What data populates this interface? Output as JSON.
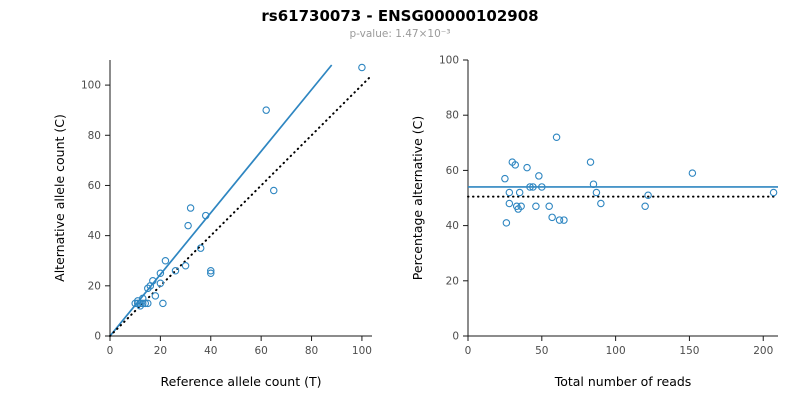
{
  "title": "rs61730073 - ENSG00000102908",
  "subtitle": "p-value: 1.47×10⁻³",
  "colors": {
    "accent_blue": "#2e86c1",
    "identity_black": "#000000",
    "axis": "#1a1a1a",
    "tick_text": "#4d4d4d"
  },
  "chart_data": [
    {
      "type": "scatter",
      "title": "",
      "xlabel": "Reference allele count (T)",
      "ylabel": "Alternative allele count (C)",
      "xlim": [
        0,
        104
      ],
      "ylim": [
        0,
        110
      ],
      "xticks": [
        0,
        20,
        40,
        60,
        80,
        100
      ],
      "yticks": [
        0,
        20,
        40,
        60,
        80,
        100
      ],
      "grid": false,
      "point_color": "#2e86c1",
      "points": [
        [
          10,
          13
        ],
        [
          11,
          13
        ],
        [
          11,
          14
        ],
        [
          12,
          12
        ],
        [
          12,
          13
        ],
        [
          13,
          13
        ],
        [
          13,
          15
        ],
        [
          14,
          13
        ],
        [
          15,
          13
        ],
        [
          15,
          19
        ],
        [
          16,
          20
        ],
        [
          17,
          22
        ],
        [
          18,
          16
        ],
        [
          20,
          25
        ],
        [
          20,
          21
        ],
        [
          21,
          13
        ],
        [
          22,
          30
        ],
        [
          26,
          26
        ],
        [
          30,
          28
        ],
        [
          31,
          44
        ],
        [
          32,
          51
        ],
        [
          36,
          35
        ],
        [
          38,
          48
        ],
        [
          40,
          26
        ],
        [
          40,
          25
        ],
        [
          62,
          90
        ],
        [
          65,
          58
        ],
        [
          100,
          107
        ]
      ],
      "lines": [
        {
          "name": "regression-line",
          "style": "solid",
          "color": "#2e86c1",
          "points": [
            [
              0,
              0
            ],
            [
              88,
              108
            ]
          ]
        },
        {
          "name": "identity-line",
          "style": "dotted",
          "color": "#000000",
          "points": [
            [
              0,
              0
            ],
            [
              104,
              104
            ]
          ]
        }
      ]
    },
    {
      "type": "scatter",
      "title": "",
      "xlabel": "Total number of reads",
      "ylabel": "Percentage alternative (C)",
      "xlim": [
        0,
        210
      ],
      "ylim": [
        0,
        100
      ],
      "xticks": [
        0,
        50,
        100,
        150,
        200
      ],
      "yticks": [
        0,
        20,
        40,
        60,
        80,
        100
      ],
      "grid": false,
      "point_color": "#2e86c1",
      "points": [
        [
          25,
          57
        ],
        [
          26,
          41
        ],
        [
          28,
          48
        ],
        [
          28,
          52
        ],
        [
          30,
          63
        ],
        [
          32,
          62
        ],
        [
          33,
          47
        ],
        [
          34,
          46
        ],
        [
          35,
          52
        ],
        [
          36,
          47
        ],
        [
          40,
          61
        ],
        [
          42,
          54
        ],
        [
          44,
          54
        ],
        [
          46,
          47
        ],
        [
          48,
          58
        ],
        [
          50,
          54
        ],
        [
          55,
          47
        ],
        [
          57,
          43
        ],
        [
          60,
          72
        ],
        [
          62,
          42
        ],
        [
          65,
          42
        ],
        [
          83,
          63
        ],
        [
          85,
          55
        ],
        [
          87,
          52
        ],
        [
          90,
          48
        ],
        [
          120,
          47
        ],
        [
          122,
          51
        ],
        [
          152,
          59
        ],
        [
          207,
          52
        ]
      ],
      "lines": [
        {
          "name": "mean-percentage-line",
          "style": "solid",
          "color": "#2e86c1",
          "points": [
            [
              0,
              54
            ],
            [
              210,
              54
            ]
          ]
        },
        {
          "name": "fifty-percent-line",
          "style": "dotted",
          "color": "#000000",
          "points": [
            [
              0,
              50.5
            ],
            [
              210,
              50.5
            ]
          ]
        }
      ]
    }
  ]
}
